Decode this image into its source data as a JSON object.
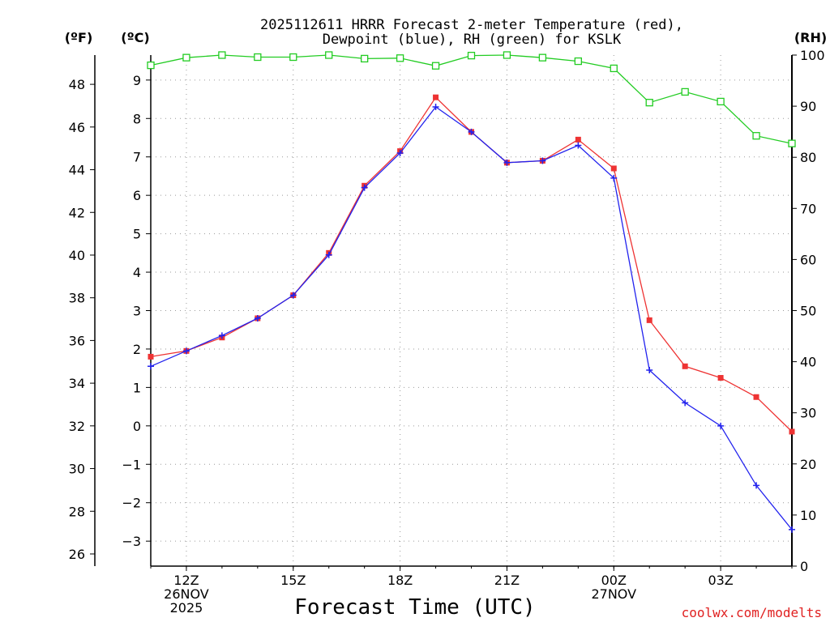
{
  "chart_data": {
    "type": "line",
    "title": "2025112611 HRRR Forecast 2-meter Temperature (red),",
    "subtitle": "Dewpoint (blue), RH (green) for KSLK",
    "xlabel": "Forecast Time (UTC)",
    "credit": "coolwx.com/modelts",
    "units": {
      "fahrenheit": "(ºF)",
      "celsius": "(ºC)",
      "rh": "(RH)"
    },
    "x_hours": [
      11,
      12,
      13,
      14,
      15,
      16,
      17,
      18,
      19,
      20,
      21,
      22,
      23,
      24,
      25,
      26,
      27,
      28,
      29
    ],
    "x_ticks": [
      {
        "hour": 12,
        "lines": [
          "12Z",
          "26NOV",
          "2025"
        ]
      },
      {
        "hour": 15,
        "lines": [
          "15Z"
        ]
      },
      {
        "hour": 18,
        "lines": [
          "18Z"
        ]
      },
      {
        "hour": 21,
        "lines": [
          "21Z"
        ]
      },
      {
        "hour": 24,
        "lines": [
          "00Z",
          "27NOV"
        ]
      },
      {
        "hour": 27,
        "lines": [
          "03Z"
        ]
      }
    ],
    "xlim": [
      11,
      29
    ],
    "celsius_axis": {
      "ylim": [
        -3.65,
        9.65
      ],
      "ticks": [
        -3,
        -2,
        -1,
        0,
        1,
        2,
        3,
        4,
        5,
        6,
        7,
        8,
        9
      ]
    },
    "fahrenheit_axis": {
      "ticks": [
        26,
        28,
        30,
        32,
        34,
        36,
        38,
        40,
        42,
        44,
        46,
        48
      ]
    },
    "rh_axis": {
      "ylim": [
        0,
        100
      ],
      "ticks": [
        0,
        10,
        20,
        30,
        40,
        50,
        60,
        70,
        80,
        90,
        100
      ]
    },
    "series": [
      {
        "name": "Temperature",
        "axis": "celsius",
        "color": "#ee3333",
        "marker": "filled-square",
        "values": [
          1.8,
          1.95,
          2.3,
          2.8,
          3.4,
          4.5,
          6.25,
          7.15,
          8.55,
          7.65,
          6.85,
          6.9,
          7.45,
          6.7,
          2.75,
          1.55,
          1.25,
          0.75,
          -0.15
        ]
      },
      {
        "name": "Dewpoint",
        "axis": "celsius",
        "color": "#2222ee",
        "marker": "plus",
        "values": [
          1.55,
          1.95,
          2.35,
          2.8,
          3.4,
          4.45,
          6.2,
          7.1,
          8.3,
          7.65,
          6.85,
          6.9,
          7.3,
          6.45,
          1.45,
          0.6,
          0.0,
          -1.55,
          -2.7
        ]
      },
      {
        "name": "RH",
        "axis": "rh",
        "color": "#22cc22",
        "marker": "open-square",
        "values": [
          98,
          99.5,
          100,
          99.6,
          99.6,
          100,
          99.3,
          99.4,
          97.9,
          99.9,
          100,
          99.5,
          98.8,
          97.4,
          90.7,
          92.8,
          90.9,
          84.2,
          82.7
        ]
      }
    ]
  }
}
